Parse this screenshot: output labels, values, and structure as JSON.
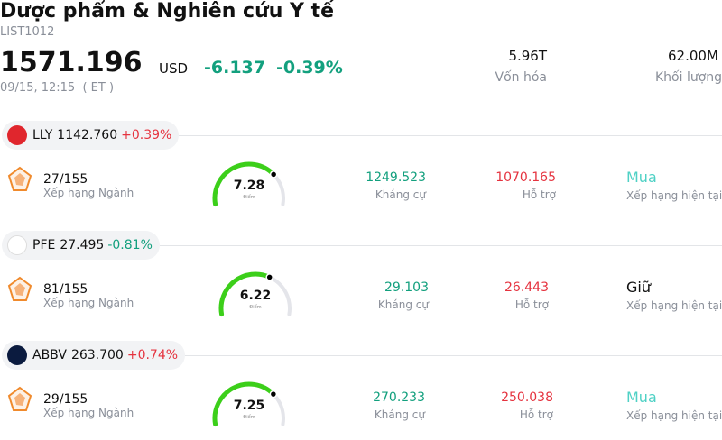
{
  "header": {
    "title": "Dược phẩm & Nghiên cứu Y tế",
    "code": "LIST1012",
    "price": "1571.196",
    "currency": "USD",
    "change": "-6.137",
    "change_pct": "-0.39%",
    "time": "09/15, 12:15  ( ET )",
    "stats": [
      {
        "value": "5.96T",
        "label": "Vốn hóa"
      },
      {
        "value": "62.00M",
        "label": "Khối lượng"
      }
    ]
  },
  "stocks": [
    {
      "ticker": "LLY",
      "price": "1142.760",
      "change": "+0.39%",
      "rank": "27/155",
      "rank_label": "Xếp hạng Ngành",
      "score": 7.28,
      "score_label": "Điểm",
      "resistance": "1249.523",
      "resistance_label": "Kháng cự",
      "support": "1070.165",
      "support_label": "Hỗ trợ",
      "rating": "Mua",
      "rating_label": "Xếp hạng hiện tại"
    },
    {
      "ticker": "PFE",
      "price": "27.495",
      "change": "-0.81%",
      "rank": "81/155",
      "rank_label": "Xếp hạng Ngành",
      "score": 6.22,
      "score_label": "Điểm",
      "resistance": "29.103",
      "resistance_label": "Kháng cự",
      "support": "26.443",
      "support_label": "Hỗ trợ",
      "rating": "Giữ",
      "rating_label": "Xếp hạng hiện tại"
    },
    {
      "ticker": "ABBV",
      "price": "263.700",
      "change": "+0.74%",
      "rank": "29/155",
      "rank_label": "Xếp hạng Ngành",
      "score": 7.25,
      "score_label": "Điểm",
      "resistance": "270.233",
      "resistance_label": "Kháng cự",
      "support": "250.038",
      "support_label": "Hỗ trợ",
      "rating": "Mua",
      "rating_label": "Xếp hạng hiện tại"
    }
  ]
}
